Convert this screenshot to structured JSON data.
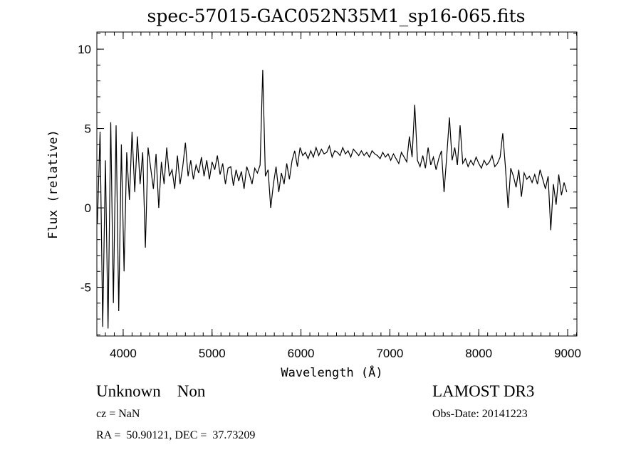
{
  "chart_data": {
    "type": "line",
    "title": "spec-57015-GAC052N35M1_sp16-065.fits",
    "xlabel": "Wavelength (Å)",
    "ylabel": "Flux (relative)",
    "xlim": [
      3704,
      9104
    ],
    "ylim": [
      -8.07,
      11.08
    ],
    "x_ticks": [
      4000,
      5000,
      6000,
      7000,
      8000,
      9000
    ],
    "x_tick_labels": [
      "4000",
      "5000",
      "6000",
      "7000",
      "8000",
      "9000"
    ],
    "y_ticks": [
      -5,
      0,
      5,
      10
    ],
    "y_tick_labels": [
      "-5",
      "0",
      "5",
      "10"
    ],
    "x_minor_step": 100,
    "y_minor_step": 1,
    "grid": false,
    "legend": "none",
    "series": [
      {
        "name": "flux",
        "color": "#000000",
        "x_start": 3710,
        "x_step": 30,
        "values": [
          -1,
          4.8,
          -7.5,
          3,
          -7.6,
          5.4,
          -6,
          5.2,
          -6.5,
          4,
          -4,
          3.5,
          0.5,
          4.8,
          1,
          4.5,
          1.5,
          3.5,
          -2.5,
          3.8,
          2.5,
          1.2,
          3.4,
          0,
          2.9,
          1.5,
          3.8,
          2,
          2.4,
          1.2,
          3.3,
          1.5,
          2.6,
          4.1,
          2,
          3,
          1.8,
          2.7,
          2.2,
          3.2,
          2,
          3,
          1.8,
          2.9,
          2.4,
          3.3,
          2.1,
          2.8,
          1.5,
          2.5,
          2.6,
          1.4,
          2.4,
          1.7,
          2.3,
          1.2,
          2.6,
          2.1,
          1.5,
          2.5,
          2.2,
          2.7,
          8.7,
          2.0,
          2.4,
          0,
          1.5,
          2.6,
          1.0,
          2.2,
          1.5,
          2.8,
          1.8,
          3.0,
          3.6,
          2.6,
          3.8,
          3.3,
          3.5,
          3.1,
          3.6,
          3.2,
          3.8,
          3.3,
          3.7,
          3.4,
          3.5,
          3.9,
          3.2,
          3.6,
          3.5,
          3.3,
          3.8,
          3.4,
          3.6,
          3.2,
          3.7,
          3.5,
          3.3,
          3.6,
          3.3,
          3.5,
          3.2,
          3.6,
          3.4,
          3.3,
          3.1,
          3.5,
          3.2,
          3.4,
          3.0,
          3.4,
          3.1,
          2.8,
          3.5,
          3.2,
          2.9,
          4.5,
          3.2,
          6.5,
          3.0,
          2.6,
          3.3,
          2.5,
          3.8,
          2.7,
          3.2,
          2.4,
          3.1,
          3.6,
          1.0,
          3.3,
          5.7,
          3.0,
          3.8,
          2.7,
          5.2,
          2.8,
          3.1,
          2.6,
          3.0,
          2.7,
          3.2,
          2.8,
          2.5,
          3.0,
          2.7,
          2.9,
          3.3,
          2.6,
          2.8,
          3.2,
          4.7,
          2.6,
          0.0,
          2.5,
          2.0,
          1.3,
          2.4,
          0.7,
          2.2,
          1.8,
          2.0,
          1.6,
          2.1,
          1.5,
          2.4,
          1.8,
          1.2,
          2.0,
          -1.4,
          1.5,
          0.2,
          2.1,
          0.8,
          1.6,
          1.0
        ]
      }
    ]
  },
  "annotations": {
    "object_class": "Unknown    Non",
    "cz": "cz = NaN",
    "coords": "RA =  50.90121, DEC =  37.73209",
    "survey": "LAMOST DR3",
    "obs_date": "Obs-Date: 20141223"
  }
}
